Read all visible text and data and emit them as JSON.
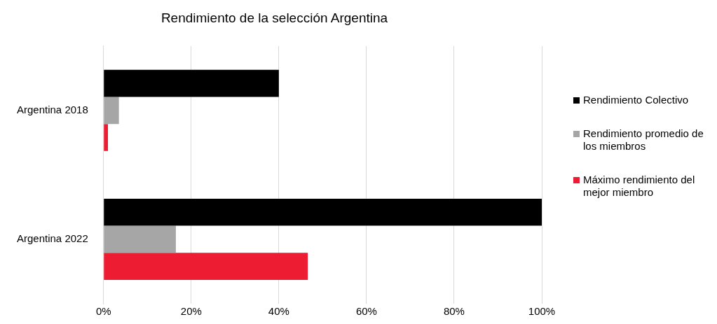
{
  "chart_data": {
    "type": "bar",
    "orientation": "horizontal",
    "title": "Rendimiento de la selección Argentina",
    "categories": [
      "Argentina 2018",
      "Argentina 2022"
    ],
    "series": [
      {
        "name": "Rendimiento Colectivo",
        "color": "#000000",
        "values": [
          40,
          100
        ]
      },
      {
        "name": "Rendimiento promedio de los miembros",
        "color": "#a6a6a6",
        "values": [
          3.5,
          16.5
        ]
      },
      {
        "name": "Máximo rendimiento del mejor miembro",
        "color": "#ee1c33",
        "values": [
          1,
          46.6
        ]
      }
    ],
    "xlim": [
      0,
      100
    ],
    "xticks": [
      {
        "value": 0,
        "label": "0%"
      },
      {
        "value": 20,
        "label": "20%"
      },
      {
        "value": 40,
        "label": "40%"
      },
      {
        "value": 60,
        "label": "60%"
      },
      {
        "value": 80,
        "label": "80%"
      },
      {
        "value": 100,
        "label": "100%"
      }
    ],
    "grid": "x",
    "legend": "right"
  }
}
